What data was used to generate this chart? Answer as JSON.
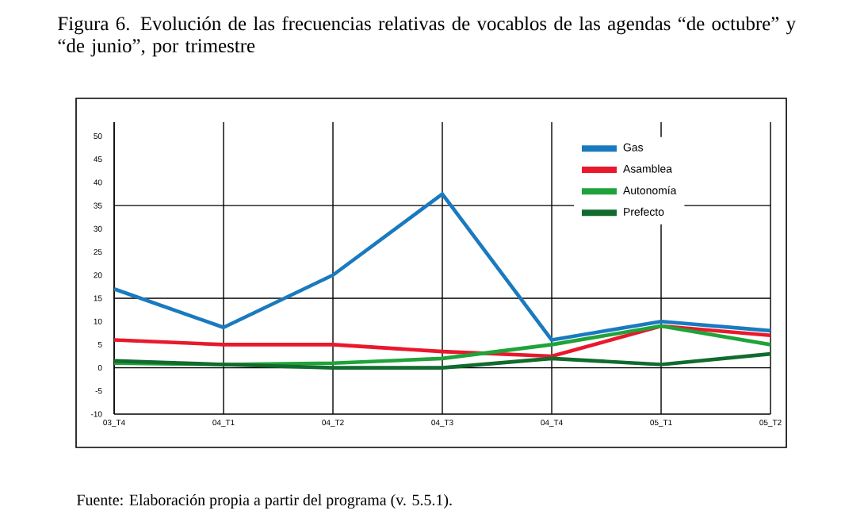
{
  "chart_data": {
    "type": "line",
    "title": "Figura 6. Evolución de las frecuencias relativas de vocablos de las agendas “de octubre” y “de junio”, por trimestre",
    "categories": [
      "03_T4",
      "04_T1",
      "04_T2",
      "04_T3",
      "04_T4",
      "05_T1",
      "05_T2"
    ],
    "series": [
      {
        "name": "Gas",
        "color": "#1a7abf",
        "values": [
          17,
          8.7,
          20,
          37.5,
          6,
          10,
          8
        ]
      },
      {
        "name": "Asamblea",
        "color": "#e8192c",
        "values": [
          6,
          5,
          5,
          3.5,
          2.5,
          9,
          7
        ]
      },
      {
        "name": "Autonomía",
        "color": "#1fa33a",
        "values": [
          1,
          0.7,
          1,
          2,
          5,
          9,
          5
        ]
      },
      {
        "name": "Prefecto",
        "color": "#116b2e",
        "values": [
          1.5,
          0.7,
          0,
          0,
          2,
          0.7,
          3
        ]
      }
    ],
    "ylim": [
      -10,
      53
    ],
    "yticks": [
      -10,
      -5,
      0,
      5,
      10,
      15,
      20,
      25,
      30,
      35,
      40,
      45,
      50
    ],
    "grid": "x",
    "legend": "top right",
    "marker": "none",
    "line_style": "solid",
    "ref_lines": [
      {
        "axis": "y",
        "value": 0,
        "color": "#000000"
      },
      {
        "axis": "y",
        "value": 15,
        "color": "#000000"
      },
      {
        "axis": "y",
        "value": 35,
        "color": "#000000"
      }
    ],
    "annotations": [
      "Fuente: Elaboración propia a partir del programa (v. 5.5.1)."
    ]
  }
}
